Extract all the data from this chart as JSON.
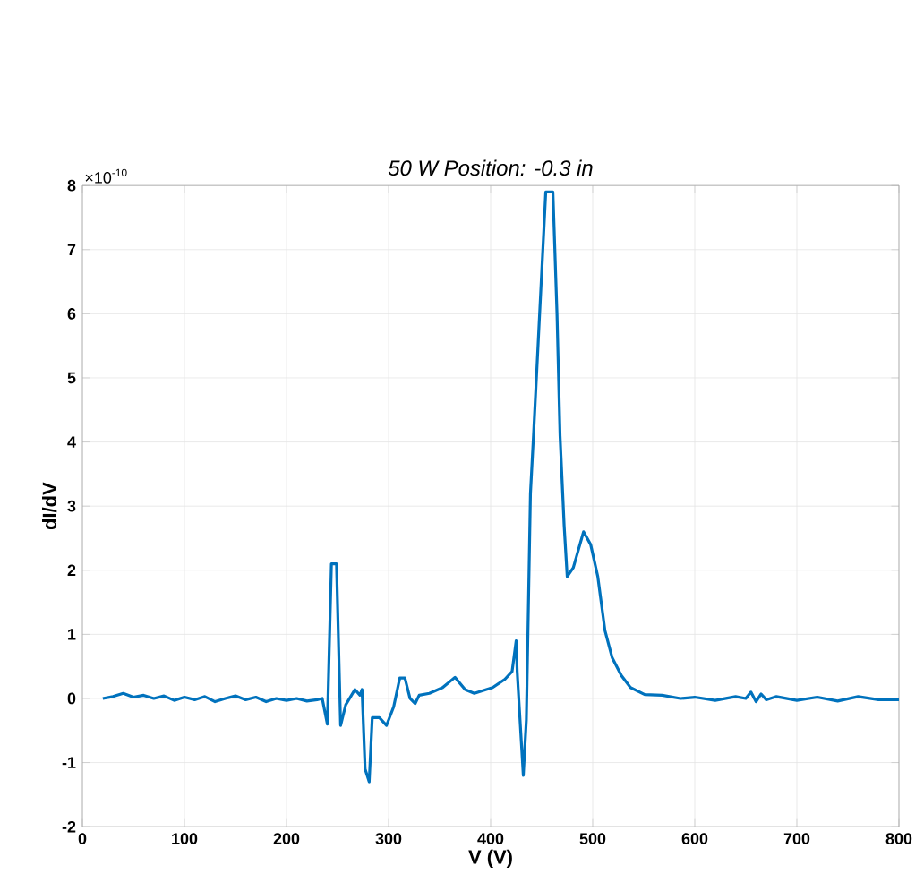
{
  "chart_data": {
    "type": "line",
    "title": "*50 W Position: -0.3 in*",
    "xlabel": "V (V)",
    "ylabel": "dI/dV",
    "annotations": [
      "×10$^{-10}$"
    ],
    "x": [
      20,
      30,
      40,
      50,
      60,
      70,
      80,
      90,
      100,
      110,
      120,
      130,
      140,
      150,
      160,
      170,
      180,
      190,
      200,
      210,
      220,
      230,
      235,
      240,
      244,
      249,
      253,
      258,
      267,
      272,
      274,
      277,
      281,
      284,
      291,
      298,
      305,
      311,
      316,
      321,
      326,
      330,
      340,
      353,
      365,
      375,
      384,
      402,
      414,
      421,
      425,
      426,
      432,
      435,
      439,
      442,
      448,
      454,
      461,
      465,
      468,
      472,
      475,
      481,
      491,
      498,
      505,
      512,
      519,
      528,
      537,
      551,
      568,
      586,
      600,
      620,
      640,
      650,
      655,
      660,
      665,
      670,
      680,
      700,
      720,
      740,
      760,
      780,
      800
    ],
    "series": [
      {
        "color": "#0072bd",
        "values": [
          0,
          0.03,
          0.08,
          0.02,
          0.05,
          0,
          0.04,
          -0.03,
          0.02,
          -0.02,
          0.03,
          -0.05,
          0,
          0.04,
          -0.02,
          0.02,
          -0.05,
          0,
          -0.03,
          0,
          -0.04,
          -0.02,
          0,
          -0.4,
          2.1,
          2.1,
          -0.42,
          -0.1,
          0.14,
          0.05,
          0.14,
          -1.1,
          -1.3,
          -0.3,
          -0.3,
          -0.42,
          -0.13,
          0.32,
          0.32,
          0,
          -0.08,
          0.05,
          0.08,
          0.17,
          0.33,
          0.14,
          0.08,
          0.17,
          0.3,
          0.42,
          0.9,
          0.42,
          -1.2,
          -0.33,
          3.2,
          4.1,
          6.0,
          7.9,
          7.9,
          6.0,
          4.1,
          2.7,
          1.9,
          2.04,
          2.6,
          2.4,
          1.9,
          1.06,
          0.64,
          0.36,
          0.17,
          0.06,
          0.05,
          0.0,
          0.02,
          -0.03,
          0.03,
          0.0,
          0.1,
          -0.05,
          0.07,
          -0.02,
          0.03,
          -0.03,
          0.02,
          -0.04,
          0.03,
          -0.02,
          -0.02
        ]
      }
    ],
    "xlim": [
      0,
      800
    ],
    "ylim": [
      -2,
      8
    ],
    "xticks": [
      0,
      100,
      200,
      300,
      400,
      500,
      600,
      700,
      800
    ],
    "yticks": [
      -2,
      -1,
      0,
      1,
      2,
      3,
      4,
      5,
      6,
      7,
      8
    ],
    "grid": true,
    "marker": "none",
    "line_style": "solid"
  }
}
